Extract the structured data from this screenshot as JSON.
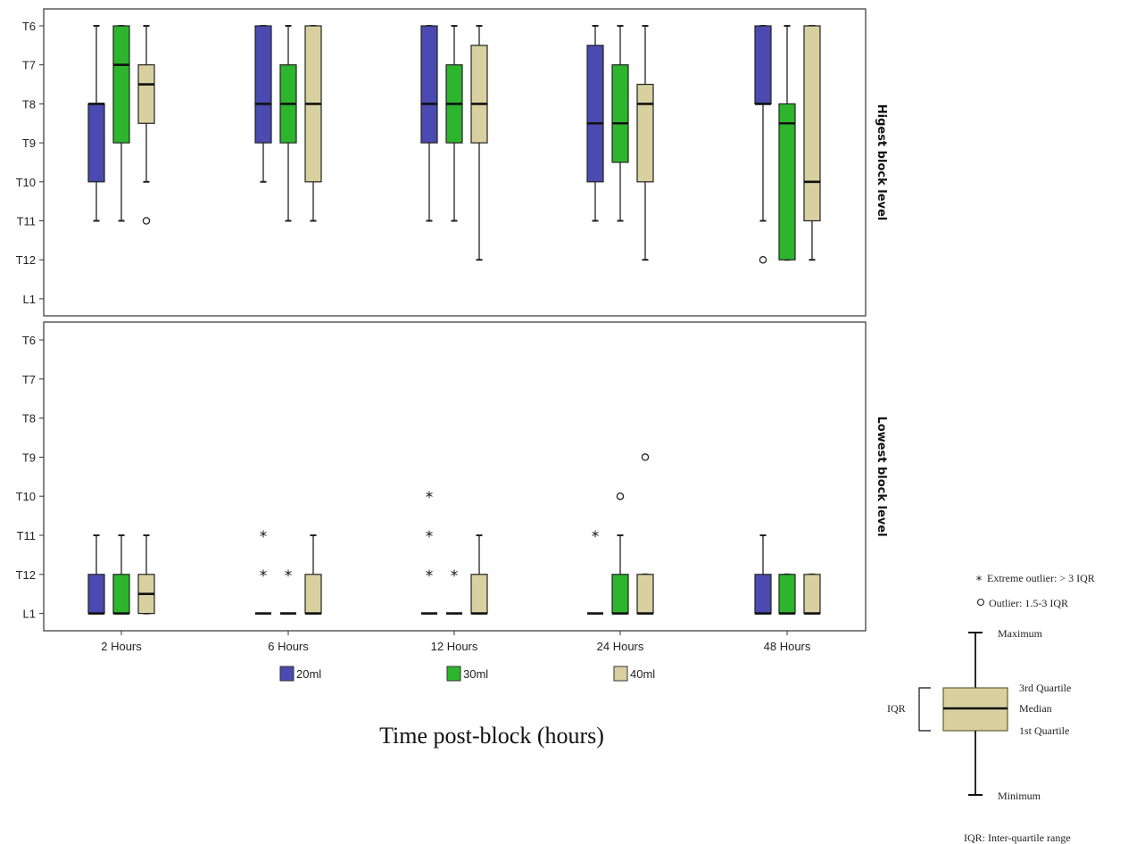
{
  "chart_data": {
    "type": "box",
    "x_title": "Time post-block (hours)",
    "categories": [
      "2 Hours",
      "6 Hours",
      "12 Hours",
      "24 Hours",
      "48 Hours"
    ],
    "y_levels": [
      "T6",
      "T7",
      "T8",
      "T9",
      "T10",
      "T11",
      "T12",
      "L1"
    ],
    "groups": [
      {
        "name": "20ml",
        "color": "#4a4ab0"
      },
      {
        "name": "30ml",
        "color": "#2db52d"
      },
      {
        "name": "40ml",
        "color": "#d9d0a0"
      }
    ],
    "panels": [
      {
        "label": "Higest block level",
        "boxes": [
          {
            "category": 0,
            "group": 0,
            "min": 0,
            "q1": 2.0,
            "median": 2.0,
            "q3": 4.0,
            "max": 5.0,
            "outliers": [],
            "extremes": []
          },
          {
            "category": 0,
            "group": 1,
            "min": 0,
            "q1": 0,
            "median": 1.0,
            "q3": 3.0,
            "max": 5.0,
            "outliers": [],
            "extremes": []
          },
          {
            "category": 0,
            "group": 2,
            "min": 0,
            "q1": 1.0,
            "median": 1.5,
            "q3": 2.5,
            "max": 4.0,
            "outliers": [
              5.0
            ],
            "extremes": []
          },
          {
            "category": 1,
            "group": 0,
            "min": 0,
            "q1": 0,
            "median": 2.0,
            "q3": 3.0,
            "max": 4.0,
            "outliers": [],
            "extremes": []
          },
          {
            "category": 1,
            "group": 1,
            "min": 0,
            "q1": 1.0,
            "median": 2.0,
            "q3": 3.0,
            "max": 5.0,
            "outliers": [],
            "extremes": []
          },
          {
            "category": 1,
            "group": 2,
            "min": 0,
            "q1": 0,
            "median": 2.0,
            "q3": 4.0,
            "max": 5.0,
            "outliers": [],
            "extremes": []
          },
          {
            "category": 2,
            "group": 0,
            "min": 0,
            "q1": 0,
            "median": 2.0,
            "q3": 3.0,
            "max": 5.0,
            "outliers": [],
            "extremes": []
          },
          {
            "category": 2,
            "group": 1,
            "min": 0,
            "q1": 1.0,
            "median": 2.0,
            "q3": 3.0,
            "max": 5.0,
            "outliers": [],
            "extremes": []
          },
          {
            "category": 2,
            "group": 2,
            "min": 0,
            "q1": 0.5,
            "median": 2.0,
            "q3": 3.0,
            "max": 6.0,
            "outliers": [],
            "extremes": []
          },
          {
            "category": 3,
            "group": 0,
            "min": 0,
            "q1": 0.5,
            "median": 2.5,
            "q3": 4.0,
            "max": 5.0,
            "outliers": [],
            "extremes": []
          },
          {
            "category": 3,
            "group": 1,
            "min": 0,
            "q1": 1.0,
            "median": 2.5,
            "q3": 3.5,
            "max": 5.0,
            "outliers": [],
            "extremes": []
          },
          {
            "category": 3,
            "group": 2,
            "min": 0,
            "q1": 1.5,
            "median": 2.0,
            "q3": 4.0,
            "max": 6.0,
            "outliers": [],
            "extremes": []
          },
          {
            "category": 4,
            "group": 0,
            "min": 0,
            "q1": 0,
            "median": 2.0,
            "q3": 2.0,
            "max": 5.0,
            "outliers": [
              6.0
            ],
            "extremes": []
          },
          {
            "category": 4,
            "group": 1,
            "min": 0,
            "q1": 2.0,
            "median": 2.5,
            "q3": 6.0,
            "max": 6.0,
            "outliers": [],
            "extremes": []
          },
          {
            "category": 4,
            "group": 2,
            "min": 0,
            "q1": 0,
            "median": 4.0,
            "q3": 5.0,
            "max": 6.0,
            "outliers": [],
            "extremes": []
          }
        ]
      },
      {
        "label": "Lowest block level",
        "boxes": [
          {
            "category": 0,
            "group": 0,
            "min": 5.0,
            "q1": 6.0,
            "median": 7.0,
            "q3": 7.0,
            "max": 7.0,
            "outliers": [],
            "extremes": []
          },
          {
            "category": 0,
            "group": 1,
            "min": 5.0,
            "q1": 6.0,
            "median": 7.0,
            "q3": 7.0,
            "max": 7.0,
            "outliers": [],
            "extremes": []
          },
          {
            "category": 0,
            "group": 2,
            "min": 5.0,
            "q1": 6.0,
            "median": 6.5,
            "q3": 7.0,
            "max": 7.0,
            "outliers": [],
            "extremes": []
          },
          {
            "category": 1,
            "group": 0,
            "min": 7.0,
            "q1": 7.0,
            "median": 7.0,
            "q3": 7.0,
            "max": 7.0,
            "outliers": [],
            "extremes": [
              5.0,
              6.0
            ]
          },
          {
            "category": 1,
            "group": 1,
            "min": 7.0,
            "q1": 7.0,
            "median": 7.0,
            "q3": 7.0,
            "max": 7.0,
            "outliers": [],
            "extremes": [
              6.0
            ]
          },
          {
            "category": 1,
            "group": 2,
            "min": 5.0,
            "q1": 6.0,
            "median": 7.0,
            "q3": 7.0,
            "max": 7.0,
            "outliers": [],
            "extremes": []
          },
          {
            "category": 2,
            "group": 0,
            "min": 7.0,
            "q1": 7.0,
            "median": 7.0,
            "q3": 7.0,
            "max": 7.0,
            "outliers": [],
            "extremes": [
              4.0,
              5.0,
              6.0
            ]
          },
          {
            "category": 2,
            "group": 1,
            "min": 7.0,
            "q1": 7.0,
            "median": 7.0,
            "q3": 7.0,
            "max": 7.0,
            "outliers": [],
            "extremes": [
              6.0
            ]
          },
          {
            "category": 2,
            "group": 2,
            "min": 5.0,
            "q1": 6.0,
            "median": 7.0,
            "q3": 7.0,
            "max": 7.0,
            "outliers": [],
            "extremes": []
          },
          {
            "category": 3,
            "group": 0,
            "min": 7.0,
            "q1": 7.0,
            "median": 7.0,
            "q3": 7.0,
            "max": 7.0,
            "outliers": [],
            "extremes": [
              5.0
            ]
          },
          {
            "category": 3,
            "group": 1,
            "min": 5.0,
            "q1": 6.0,
            "median": 7.0,
            "q3": 7.0,
            "max": 7.0,
            "outliers": [
              4.0
            ],
            "extremes": []
          },
          {
            "category": 3,
            "group": 2,
            "min": 6.0,
            "q1": 6.0,
            "median": 7.0,
            "q3": 7.0,
            "max": 7.0,
            "outliers": [
              3.0
            ],
            "extremes": []
          },
          {
            "category": 4,
            "group": 0,
            "min": 5.0,
            "q1": 6.0,
            "median": 7.0,
            "q3": 7.0,
            "max": 7.0,
            "outliers": [],
            "extremes": []
          },
          {
            "category": 4,
            "group": 1,
            "min": 6.0,
            "q1": 6.0,
            "median": 7.0,
            "q3": 7.0,
            "max": 7.0,
            "outliers": [],
            "extremes": []
          },
          {
            "category": 4,
            "group": 2,
            "min": 6.0,
            "q1": 6.0,
            "median": 7.0,
            "q3": 7.0,
            "max": 7.0,
            "outliers": [],
            "extremes": []
          }
        ]
      }
    ],
    "key": {
      "extreme_label": "Extreme outlier: > 3 IQR",
      "outlier_label": "Outlier: 1.5-3 IQR",
      "maximum": "Maximum",
      "q3": "3rd Quartile",
      "median": "Median",
      "q1": "1st Quartile",
      "minimum": "Minimum",
      "iqr": "IQR",
      "footnote": "IQR: Inter-quartile range",
      "box_color": "#d9d0a0"
    }
  }
}
